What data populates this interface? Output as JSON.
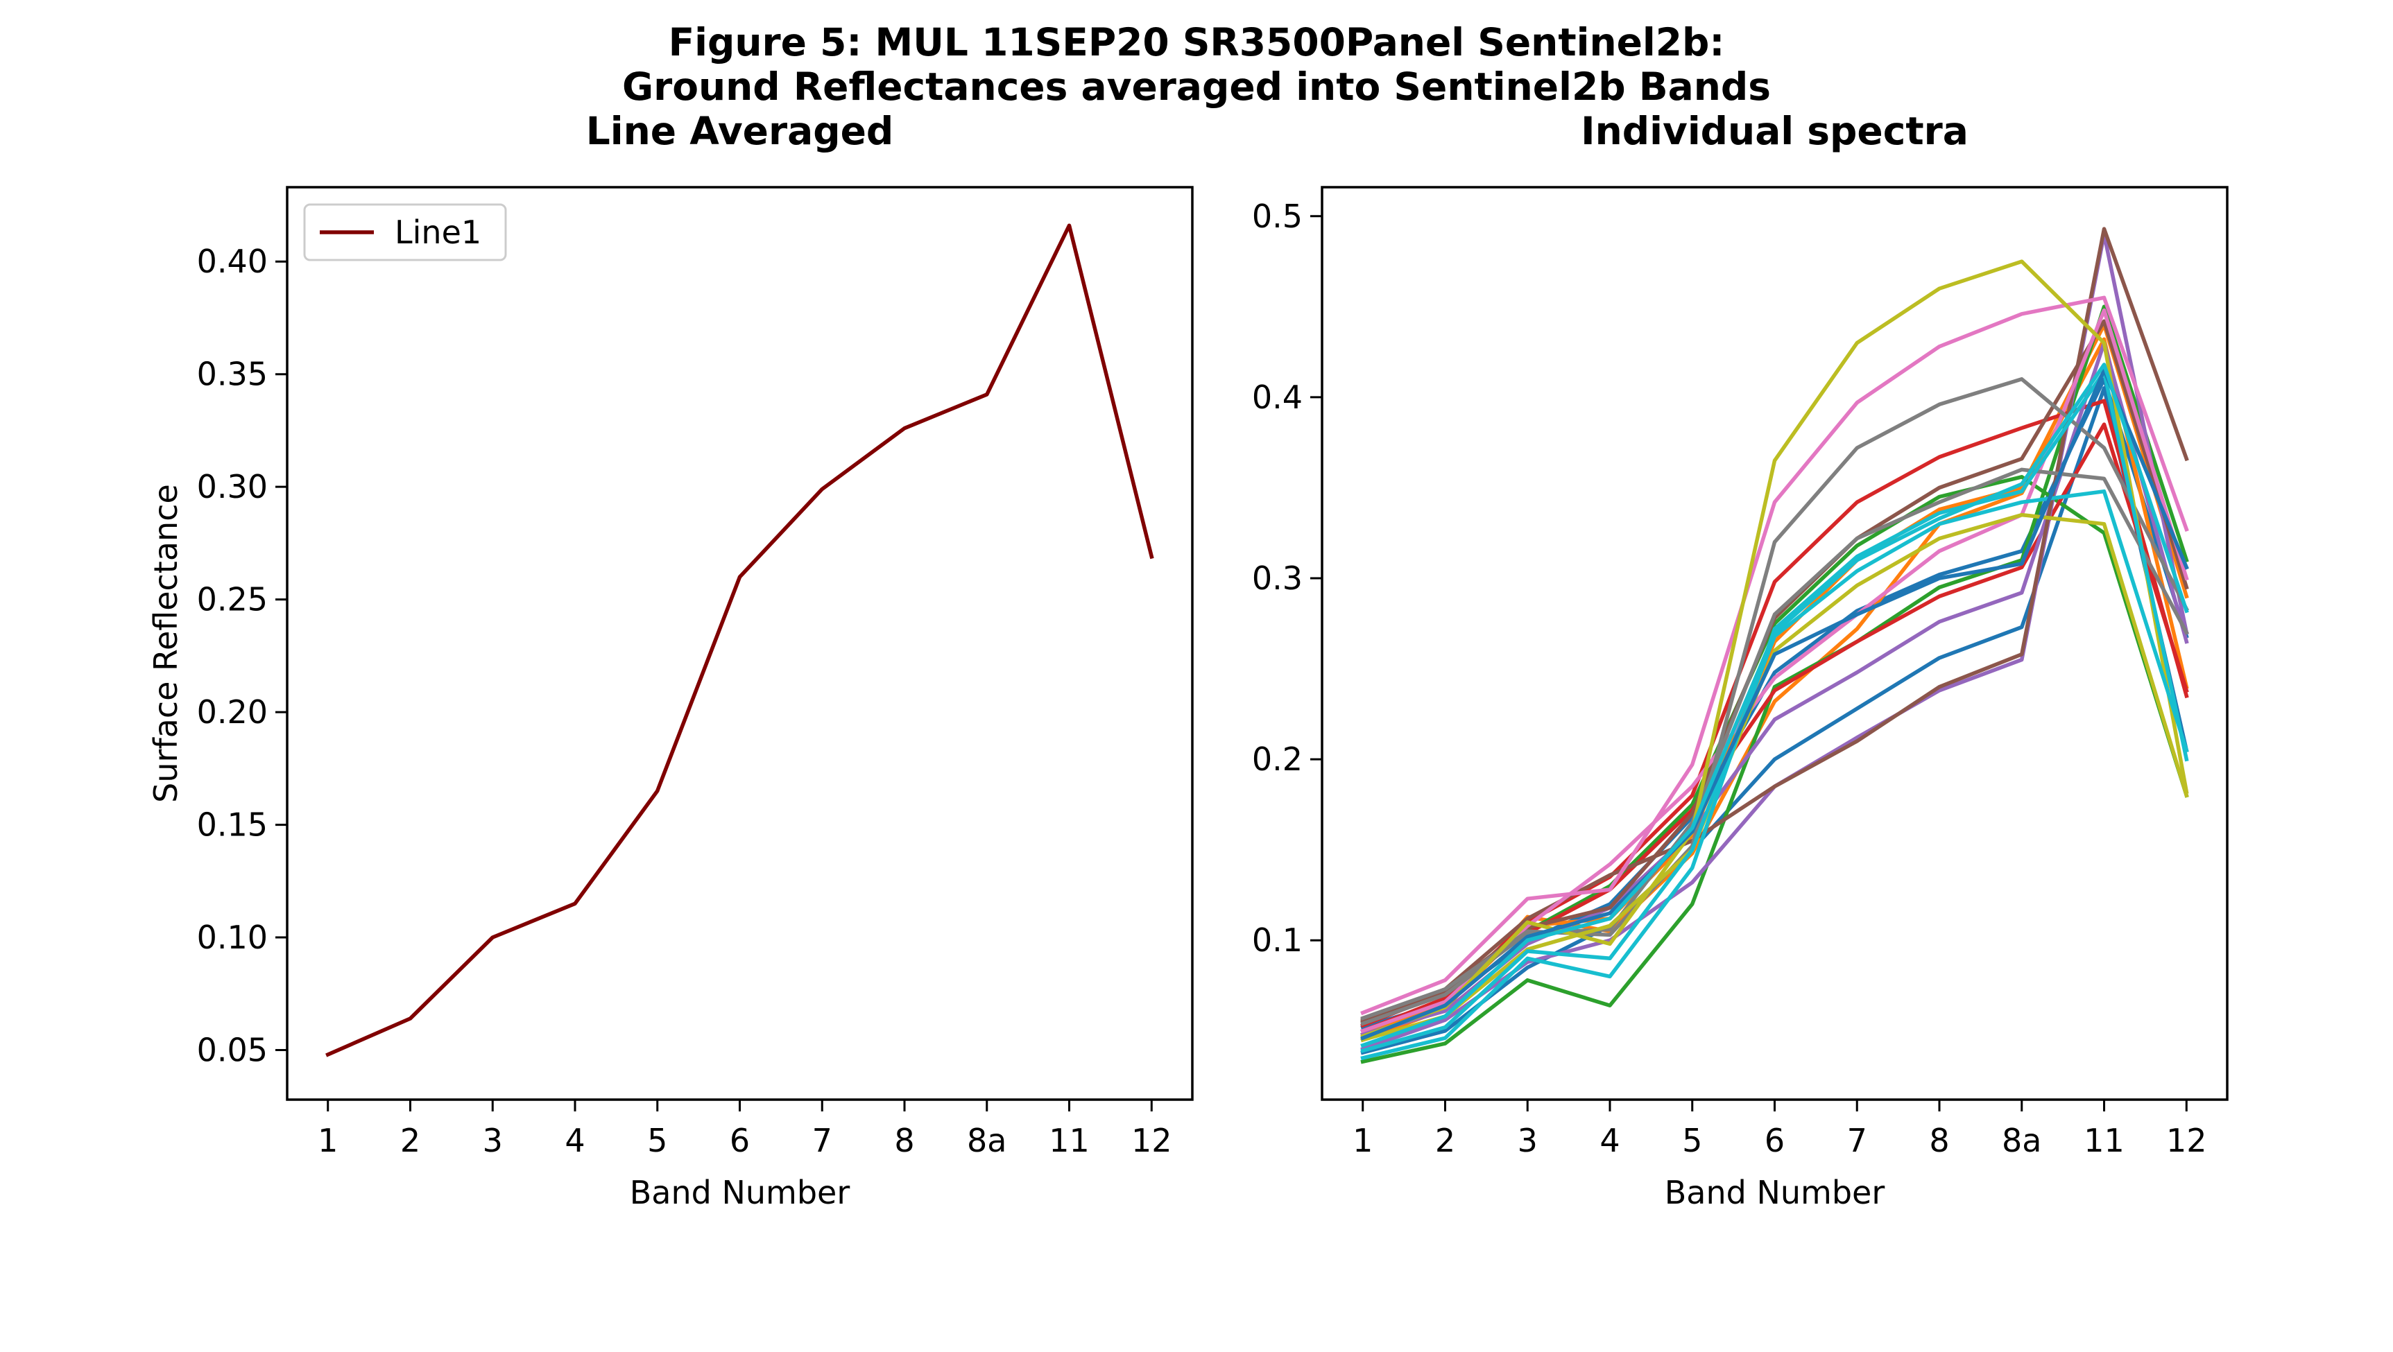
{
  "figure": {
    "title_line1": "Figure 5: MUL 11SEP20 SR3500Panel Sentinel2b:",
    "title_line2": "Ground Reflectances averaged into Sentinel2b Bands"
  },
  "chart_data": [
    {
      "type": "line",
      "title": "Line Averaged",
      "xlabel": "Band Number",
      "ylabel": "Surface Reflectance",
      "categories": [
        "1",
        "2",
        "3",
        "4",
        "5",
        "6",
        "7",
        "8",
        "8a",
        "11",
        "12"
      ],
      "ylim": [
        0.028,
        0.433
      ],
      "yticks": [
        0.05,
        0.1,
        0.15,
        0.2,
        0.25,
        0.3,
        0.35,
        0.4
      ],
      "ytick_labels": [
        "0.05",
        "0.10",
        "0.15",
        "0.20",
        "0.25",
        "0.30",
        "0.35",
        "0.40"
      ],
      "legend_position": "top-left",
      "grid": false,
      "series": [
        {
          "name": "Line1",
          "color": "#800000",
          "values": [
            0.048,
            0.064,
            0.1,
            0.115,
            0.165,
            0.26,
            0.299,
            0.326,
            0.341,
            0.416,
            0.269
          ]
        }
      ]
    },
    {
      "type": "line",
      "title": "Individual spectra",
      "xlabel": "Band Number",
      "ylabel": "",
      "categories": [
        "1",
        "2",
        "3",
        "4",
        "5",
        "6",
        "7",
        "8",
        "8a",
        "11",
        "12"
      ],
      "ylim": [
        0.012,
        0.516
      ],
      "yticks": [
        0.1,
        0.2,
        0.3,
        0.4,
        0.5
      ],
      "ytick_labels": [
        "0.1",
        "0.2",
        "0.3",
        "0.4",
        "0.5"
      ],
      "grid": false,
      "series": [
        {
          "color": "#1f77b4",
          "values": [
            0.038,
            0.05,
            0.085,
            0.108,
            0.15,
            0.2,
            0.228,
            0.256,
            0.273,
            0.405,
            0.205
          ]
        },
        {
          "color": "#1f77b4",
          "values": [
            0.052,
            0.066,
            0.1,
            0.12,
            0.168,
            0.248,
            0.282,
            0.302,
            0.315,
            0.41,
            0.268
          ]
        },
        {
          "color": "#ff7f0e",
          "values": [
            0.045,
            0.062,
            0.113,
            0.105,
            0.148,
            0.232,
            0.272,
            0.33,
            0.347,
            0.432,
            0.24
          ]
        },
        {
          "color": "#ff7f0e",
          "values": [
            0.048,
            0.064,
            0.108,
            0.112,
            0.158,
            0.265,
            0.31,
            0.338,
            0.35,
            0.44,
            0.29
          ]
        },
        {
          "color": "#2ca02c",
          "values": [
            0.033,
            0.043,
            0.078,
            0.064,
            0.12,
            0.24,
            0.265,
            0.295,
            0.31,
            0.45,
            0.31
          ]
        },
        {
          "color": "#2ca02c",
          "values": [
            0.055,
            0.07,
            0.105,
            0.13,
            0.175,
            0.275,
            0.318,
            0.345,
            0.356,
            0.325,
            0.18
          ]
        },
        {
          "color": "#d62728",
          "values": [
            0.05,
            0.068,
            0.11,
            0.135,
            0.18,
            0.298,
            0.342,
            0.367,
            0.383,
            0.398,
            0.235
          ]
        },
        {
          "color": "#d62728",
          "values": [
            0.053,
            0.071,
            0.104,
            0.128,
            0.172,
            0.238,
            0.265,
            0.29,
            0.306,
            0.385,
            0.238
          ]
        },
        {
          "color": "#9467bd",
          "values": [
            0.04,
            0.056,
            0.088,
            0.1,
            0.132,
            0.185,
            0.212,
            0.238,
            0.255,
            0.49,
            0.27
          ]
        },
        {
          "color": "#9467bd",
          "values": [
            0.048,
            0.061,
            0.098,
            0.118,
            0.16,
            0.222,
            0.248,
            0.276,
            0.292,
            0.43,
            0.265
          ]
        },
        {
          "color": "#8c564b",
          "values": [
            0.055,
            0.073,
            0.112,
            0.136,
            0.155,
            0.185,
            0.21,
            0.24,
            0.258,
            0.493,
            0.366
          ]
        },
        {
          "color": "#8c564b",
          "values": [
            0.056,
            0.072,
            0.107,
            0.118,
            0.17,
            0.278,
            0.322,
            0.35,
            0.366,
            0.442,
            0.295
          ]
        },
        {
          "color": "#e377c2",
          "values": [
            0.06,
            0.078,
            0.123,
            0.128,
            0.197,
            0.342,
            0.397,
            0.428,
            0.446,
            0.455,
            0.327
          ]
        },
        {
          "color": "#e377c2",
          "values": [
            0.05,
            0.066,
            0.108,
            0.142,
            0.185,
            0.245,
            0.28,
            0.315,
            0.335,
            0.448,
            0.3
          ]
        },
        {
          "color": "#7f7f7f",
          "values": [
            0.057,
            0.073,
            0.105,
            0.103,
            0.152,
            0.32,
            0.372,
            0.396,
            0.41,
            0.372,
            0.283
          ]
        },
        {
          "color": "#7f7f7f",
          "values": [
            0.054,
            0.07,
            0.104,
            0.106,
            0.165,
            0.28,
            0.322,
            0.342,
            0.36,
            0.355,
            0.27
          ]
        },
        {
          "color": "#bcbd22",
          "values": [
            0.047,
            0.063,
            0.11,
            0.098,
            0.16,
            0.365,
            0.43,
            0.46,
            0.475,
            0.43,
            0.182
          ]
        },
        {
          "color": "#bcbd22",
          "values": [
            0.045,
            0.058,
            0.095,
            0.108,
            0.15,
            0.26,
            0.296,
            0.322,
            0.335,
            0.33,
            0.18
          ]
        },
        {
          "color": "#17becf",
          "values": [
            0.035,
            0.046,
            0.09,
            0.08,
            0.14,
            0.272,
            0.312,
            0.336,
            0.348,
            0.414,
            0.2
          ]
        },
        {
          "color": "#17becf",
          "values": [
            0.039,
            0.052,
            0.094,
            0.09,
            0.15,
            0.268,
            0.304,
            0.33,
            0.342,
            0.348,
            0.205
          ]
        },
        {
          "color": "#1f77b4",
          "values": [
            0.046,
            0.064,
            0.102,
            0.115,
            0.16,
            0.258,
            0.28,
            0.3,
            0.308,
            0.415,
            0.306
          ]
        },
        {
          "color": "#17becf",
          "values": [
            0.042,
            0.058,
            0.1,
            0.112,
            0.162,
            0.27,
            0.31,
            0.333,
            0.352,
            0.418,
            0.282
          ]
        }
      ]
    }
  ]
}
